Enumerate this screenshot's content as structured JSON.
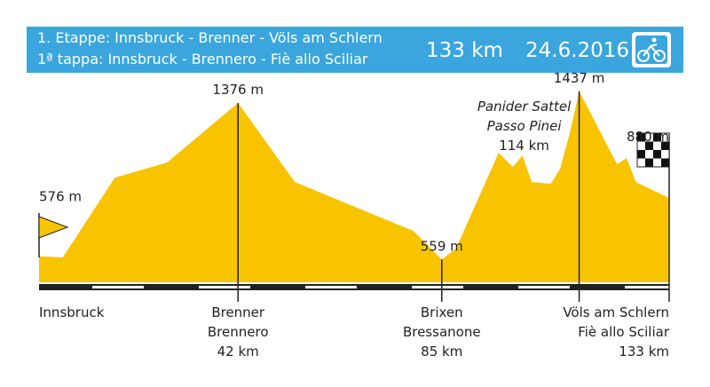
{
  "chart_data": {
    "type": "area",
    "title": [
      "1. Etappe: Innsbruck - Brenner - Völs am Schlern",
      "1ª tappa: Innsbruck - Brennero - Fiè allo Sciliar"
    ],
    "distance": "133 km",
    "date": "24.6.2016",
    "x": [
      0,
      5,
      16,
      27,
      42,
      54,
      79,
      85,
      88,
      97,
      100,
      102,
      104,
      108,
      110,
      112,
      114,
      122,
      124,
      126,
      133
    ],
    "values": [
      576,
      570,
      986,
      1065,
      1376,
      963,
      708,
      559,
      616,
      1116,
      1042,
      1102,
      963,
      954,
      1033,
      1218,
      1437,
      1056,
      1088,
      963,
      880
    ],
    "value_labels": [
      "576 m",
      null,
      null,
      null,
      "1376 m",
      null,
      null,
      "559 m",
      null,
      null,
      null,
      null,
      null,
      null,
      null,
      null,
      "1437 m",
      null,
      null,
      null,
      "880 m"
    ],
    "place_labels": [
      {
        "names": [
          "Innsbruck"
        ]
      },
      null,
      null,
      null,
      {
        "names": [
          "Brenner",
          "Brennero"
        ],
        "km": "42 km"
      },
      null,
      null,
      {
        "names": [
          "Brixen",
          "Bressanone"
        ],
        "km": "85 km"
      },
      null,
      null,
      null,
      null,
      null,
      null,
      null,
      null,
      null,
      null,
      null,
      null,
      {
        "names": [
          "Völs am Schlern",
          "Fiè allo Sciliar"
        ],
        "km": "133 km"
      }
    ],
    "summit_labels": [
      null,
      null,
      null,
      null,
      null,
      null,
      null,
      null,
      null,
      null,
      null,
      null,
      null,
      null,
      null,
      null,
      {
        "names": [
          "Panider Sattel",
          "Passo Pinei"
        ],
        "km": "114 km"
      },
      null,
      null,
      null,
      null
    ],
    "color": "#f8c400",
    "xlim": [
      0,
      133
    ],
    "ylim": [
      440,
      1450
    ]
  }
}
